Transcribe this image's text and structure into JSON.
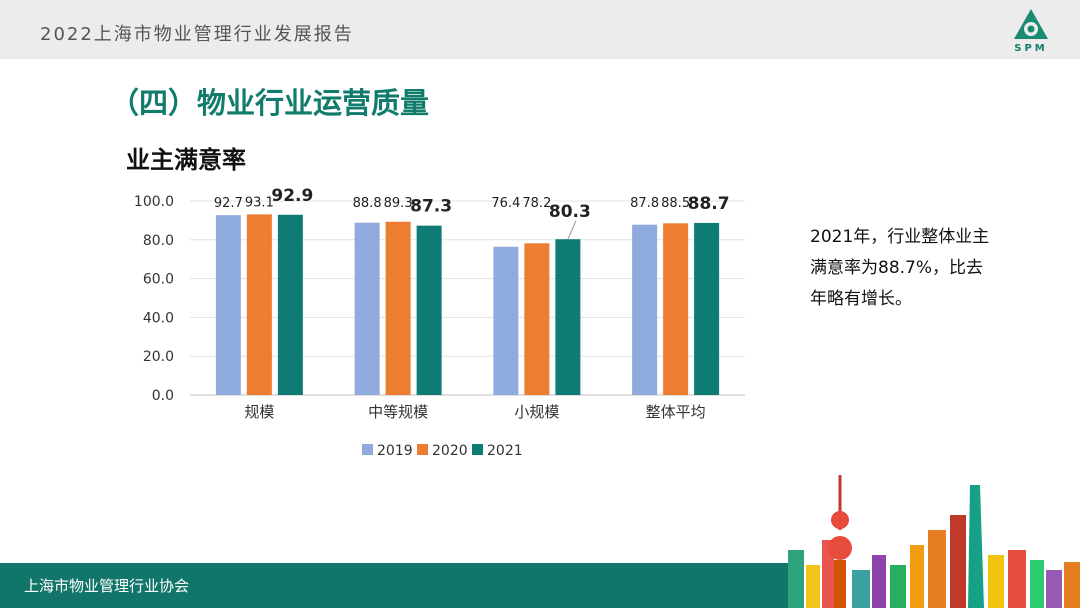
{
  "header": {
    "title": "2022上海市物业管理行业发展报告",
    "logo_text": "SPM"
  },
  "section_title": "（四）物业行业运营质量",
  "chart_title": "业主满意率",
  "note": "2021年，行业整体业主满意率为88.7%，比去年略有增长。",
  "footer": {
    "org": "上海市物业管理行业协会"
  },
  "colors": {
    "brand": "#12756a",
    "s2019": "#8faadc",
    "s2020": "#ed7d31",
    "s2021": "#0e7c74"
  },
  "chart_data": {
    "type": "bar",
    "title": "业主满意率",
    "categories": [
      "规模",
      "中等规模",
      "小规模",
      "整体平均"
    ],
    "series": [
      {
        "name": "2019",
        "values": [
          92.7,
          88.8,
          76.4,
          87.8
        ]
      },
      {
        "name": "2020",
        "values": [
          93.1,
          89.3,
          78.2,
          88.5
        ]
      },
      {
        "name": "2021",
        "values": [
          92.9,
          87.3,
          80.3,
          88.7
        ]
      }
    ],
    "value_labels": [
      [
        "92.7",
        "88.8",
        "76.4",
        "87.8"
      ],
      [
        "93.1",
        "89.3",
        "78.2",
        "88.5"
      ],
      [
        "92.9",
        "87.3",
        "80.3",
        "88.7"
      ]
    ],
    "yticks": [
      "100.0",
      "80.0",
      "60.0",
      "40.0",
      "20.0",
      "0.0"
    ],
    "ylim": [
      0,
      100
    ],
    "grid": true,
    "legend": "bottom"
  }
}
